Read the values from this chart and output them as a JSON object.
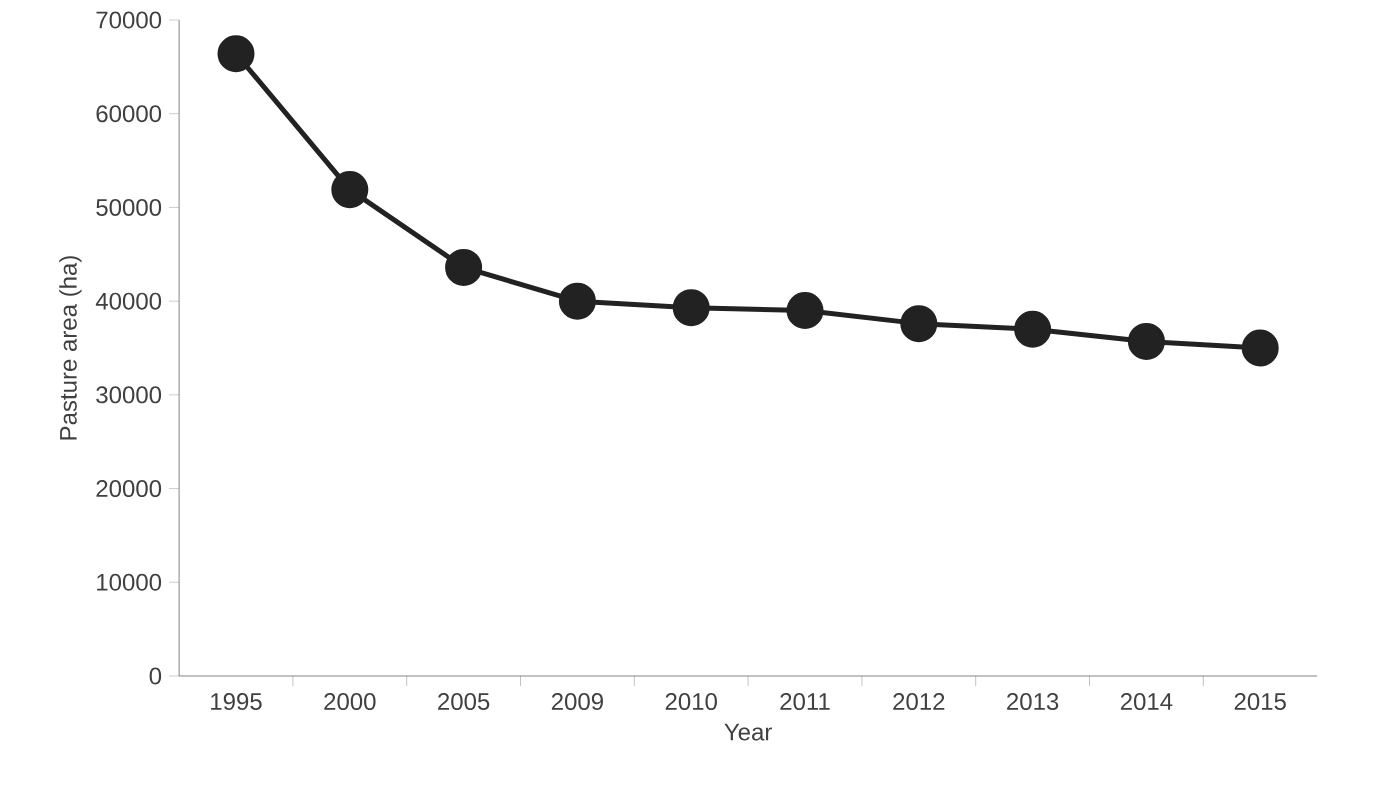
{
  "chart_data": {
    "type": "line",
    "xlabel": "Year",
    "ylabel": "Pasture area (ha)",
    "categories": [
      "1995",
      "2000",
      "2005",
      "2009",
      "2010",
      "2011",
      "2012",
      "2013",
      "2014",
      "2015"
    ],
    "values": [
      66400,
      51900,
      43600,
      40000,
      39300,
      39000,
      37600,
      37000,
      35700,
      35000
    ],
    "color": "#222222",
    "marker": "circle",
    "line_style": "solid",
    "ylim": [
      0,
      70000
    ],
    "yticks": [
      0,
      10000,
      20000,
      30000,
      40000,
      50000,
      60000,
      70000
    ],
    "grid": false
  }
}
